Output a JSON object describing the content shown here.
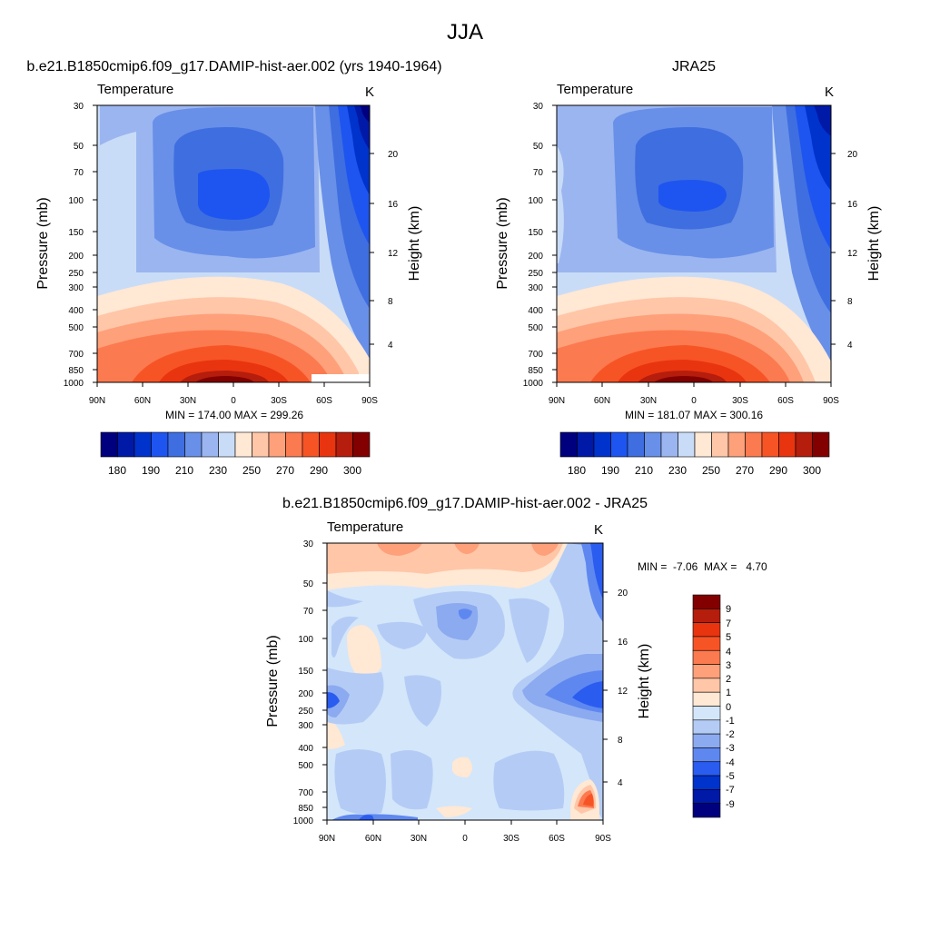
{
  "figure_title": "JJA",
  "chart_data": [
    {
      "type": "heatmap",
      "title": "b.e21.B1850cmip6.f09_g17.DAMIP-hist-aer.002 (yrs 1940-1964)",
      "variable": "Temperature",
      "units": "K",
      "xlabel": "",
      "ylabel": "Pressure (mb)",
      "ylabel_right": "Height (km)",
      "x_ticks": [
        "90N",
        "60N",
        "30N",
        "0",
        "30S",
        "60S",
        "90S"
      ],
      "y_ticks": [
        "30",
        "50",
        "70",
        "100",
        "150",
        "200",
        "250",
        "300",
        "400",
        "500",
        "700",
        "850",
        "1000"
      ],
      "y_ticks_right": [
        "20",
        "16",
        "12",
        "8",
        "4"
      ],
      "min": 174.0,
      "max": 299.26,
      "stats_label": "MIN = 174.00  MAX = 299.26",
      "colorbar_levels": [
        180,
        190,
        210,
        230,
        250,
        270,
        290,
        300
      ],
      "colorbar_ticks": [
        "180",
        "190",
        "210",
        "230",
        "250",
        "270",
        "290",
        "300"
      ],
      "colorbar_colors": [
        "#00007f",
        "#0019a7",
        "#0033cc",
        "#1e55f0",
        "#3f6ee0",
        "#6890e8",
        "#9bb5f0",
        "#c8dcf8",
        "#ffe8d4",
        "#ffc6a8",
        "#fea07a",
        "#fc7a4f",
        "#f75426",
        "#e93410",
        "#b51d0c",
        "#820000"
      ]
    },
    {
      "type": "heatmap",
      "title": "JRA25",
      "variable": "Temperature",
      "units": "K",
      "xlabel": "",
      "ylabel": "Pressure (mb)",
      "ylabel_right": "Height (km)",
      "x_ticks": [
        "90N",
        "60N",
        "30N",
        "0",
        "30S",
        "60S",
        "90S"
      ],
      "y_ticks": [
        "30",
        "50",
        "70",
        "100",
        "150",
        "200",
        "250",
        "300",
        "400",
        "500",
        "700",
        "850",
        "1000"
      ],
      "y_ticks_right": [
        "20",
        "16",
        "12",
        "8",
        "4"
      ],
      "min": 181.07,
      "max": 300.16,
      "stats_label": "MIN = 181.07  MAX = 300.16",
      "colorbar_levels": [
        180,
        190,
        210,
        230,
        250,
        270,
        290,
        300
      ],
      "colorbar_ticks": [
        "180",
        "190",
        "210",
        "230",
        "250",
        "270",
        "290",
        "300"
      ],
      "colorbar_colors": [
        "#00007f",
        "#0019a7",
        "#0033cc",
        "#1e55f0",
        "#3f6ee0",
        "#6890e8",
        "#9bb5f0",
        "#c8dcf8",
        "#ffe8d4",
        "#ffc6a8",
        "#fea07a",
        "#fc7a4f",
        "#f75426",
        "#e93410",
        "#b51d0c",
        "#820000"
      ]
    },
    {
      "type": "heatmap",
      "title": "b.e21.B1850cmip6.f09_g17.DAMIP-hist-aer.002 - JRA25",
      "variable": "Temperature",
      "units": "K",
      "xlabel": "",
      "ylabel": "Pressure (mb)",
      "ylabel_right": "Height (km)",
      "x_ticks": [
        "90N",
        "60N",
        "30N",
        "0",
        "30S",
        "60S",
        "90S"
      ],
      "y_ticks": [
        "30",
        "50",
        "70",
        "100",
        "150",
        "200",
        "250",
        "300",
        "400",
        "500",
        "700",
        "850",
        "1000"
      ],
      "y_ticks_right": [
        "20",
        "16",
        "12",
        "8",
        "4"
      ],
      "min": -7.06,
      "max": 4.7,
      "stats_label": "MIN =  -7.06  MAX =   4.70",
      "colorbar_levels": [
        9,
        7,
        5,
        4,
        3,
        2,
        1,
        0,
        -1,
        -2,
        -3,
        -4,
        -5,
        -7,
        -9
      ],
      "colorbar_ticks": [
        "9",
        "7",
        "5",
        "4",
        "3",
        "2",
        "1",
        "0",
        "-1",
        "-2",
        "-3",
        "-4",
        "-5",
        "-7",
        "-9"
      ],
      "colorbar_colors": [
        "#820000",
        "#b51d0c",
        "#e93410",
        "#f75426",
        "#fc7a4f",
        "#fea07a",
        "#ffc6a8",
        "#ffe8d4",
        "#d4e6fa",
        "#b4ccf5",
        "#8caaf0",
        "#5e88f0",
        "#2a5cf0",
        "#0033cc",
        "#0019a7",
        "#00007f"
      ]
    }
  ]
}
